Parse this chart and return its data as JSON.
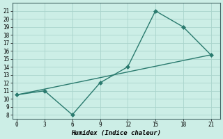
{
  "xlabel": "Humidex (Indice chaleur)",
  "line1_x": [
    0,
    3,
    6,
    9,
    12,
    15,
    18,
    21
  ],
  "line1_y": [
    10.5,
    11.0,
    8.0,
    12.0,
    14.0,
    21.0,
    19.0,
    15.5
  ],
  "line2_x": [
    0,
    21
  ],
  "line2_y": [
    10.5,
    15.5
  ],
  "xlim": [
    -0.5,
    22
  ],
  "ylim": [
    7.5,
    22
  ],
  "xticks": [
    0,
    3,
    6,
    9,
    12,
    15,
    18,
    21
  ],
  "yticks": [
    8,
    9,
    10,
    11,
    12,
    13,
    14,
    15,
    16,
    17,
    18,
    19,
    20,
    21
  ],
  "line_color": "#2a7a6e",
  "bg_color": "#cceee6",
  "grid_color": "#aad4cc",
  "marker": "D",
  "marker_size": 3,
  "line_width": 1.0,
  "tick_fontsize": 5.5,
  "xlabel_fontsize": 6.5
}
